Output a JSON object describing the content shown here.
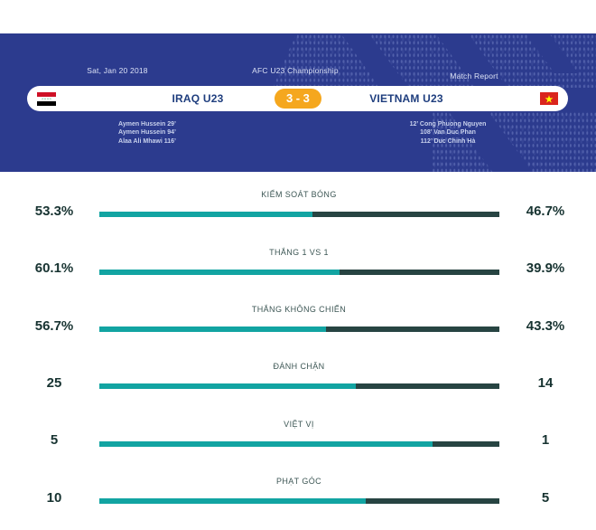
{
  "header": {
    "date": "Sat, Jan 20 2018",
    "competition": "AFC U23 Championship",
    "report_label": "Match Report",
    "score": "3 - 3",
    "home_team": {
      "name": "IRAQ U23",
      "flag": "iraq-flag"
    },
    "away_team": {
      "name": "VIETNAM U23",
      "flag": "vietnam-flag"
    },
    "home_scorers": [
      "Aymen Hussein 29’",
      "Aymen Hussein 94’",
      "Alaa Ali Mhawi 116’"
    ],
    "away_scorers": [
      "12’ Cong Phuong Nguyen",
      "108’ Van Duc Phan",
      "112’ Duc Chinh Hà"
    ]
  },
  "colors": {
    "banner_blue": "#2c3b8e",
    "pattern_dot_blue": "#4659a8",
    "score_pill_orange": "#f5a71e",
    "team_name_navy": "#20407f",
    "bar_teal_home": "#12a4a2",
    "bar_dark_away": "#274442",
    "value_text": "#173331",
    "label_text": "#415a58"
  },
  "chart_data": {
    "type": "bar",
    "title": "Match statistics Iraq U23 vs Vietnam U23",
    "orientation": "horizontal-paired",
    "categories": [
      "KIỂM SOÁT BÓNG",
      "THẮNG 1 VS 1",
      "THẮNG KHÔNG CHIẾN",
      "ĐÁNH CHẶN",
      "VIỆT VỊ",
      "PHẠT GÓC"
    ],
    "series": [
      {
        "name": "IRAQ U23",
        "values": [
          53.3,
          60.1,
          56.7,
          25,
          5,
          10
        ]
      },
      {
        "name": "VIETNAM U23",
        "values": [
          46.7,
          39.9,
          43.3,
          14,
          1,
          5
        ]
      }
    ],
    "stats": [
      {
        "label": "KIỂM SOÁT BÓNG",
        "home": "53.3%",
        "away": "46.7%",
        "home_value": 53.3,
        "away_value": 46.7
      },
      {
        "label": "THẮNG 1 VS 1",
        "home": "60.1%",
        "away": "39.9%",
        "home_value": 60.1,
        "away_value": 39.9
      },
      {
        "label": "THẮNG KHÔNG CHIẾN",
        "home": "56.7%",
        "away": "43.3%",
        "home_value": 56.7,
        "away_value": 43.3
      },
      {
        "label": "ĐÁNH CHẶN",
        "home": "25",
        "away": "14",
        "home_value": 25,
        "away_value": 14
      },
      {
        "label": "VIỆT VỊ",
        "home": "5",
        "away": "1",
        "home_value": 5,
        "away_value": 1
      },
      {
        "label": "PHẠT GÓC",
        "home": "10",
        "away": "5",
        "home_value": 10,
        "away_value": 5
      }
    ]
  }
}
